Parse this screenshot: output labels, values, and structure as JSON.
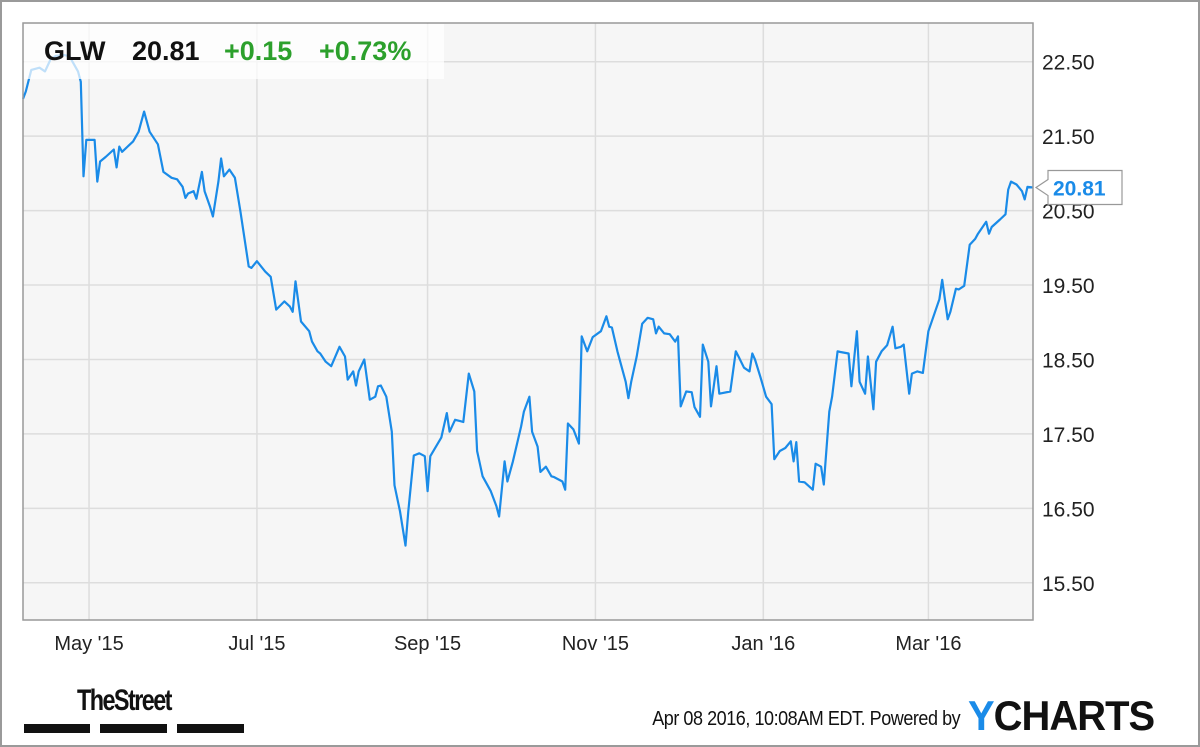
{
  "header": {
    "ticker": "GLW",
    "price": "20.81",
    "change": "+0.15",
    "change_pct": "+0.73%"
  },
  "colors": {
    "line": "#1a8be8",
    "positive": "#2ca02c",
    "grid": "#dddddd",
    "plot_bg": "#f6f6f6"
  },
  "last_value_label": "20.81",
  "footer": {
    "timestamp": "Apr 08 2016, 10:08AM EDT. Powered by",
    "brand_y": "Y",
    "brand_rest": "CHARTS",
    "publisher": "TheStreet"
  },
  "chart_data": {
    "type": "line",
    "title": "",
    "xlabel": "",
    "ylabel": "",
    "xlim": [
      "2015-04-07",
      "2016-04-08"
    ],
    "ylim": [
      15.0,
      23.02
    ],
    "grid": true,
    "y_axis_side": "right",
    "y_ticks": [
      "22.50",
      "21.50",
      "20.50",
      "19.50",
      "18.50",
      "17.50",
      "16.50",
      "15.50"
    ],
    "x_ticks": [
      {
        "date": "2015-05-01",
        "label": "May '15"
      },
      {
        "date": "2015-07-01",
        "label": "Jul '15"
      },
      {
        "date": "2015-09-01",
        "label": "Sep '15"
      },
      {
        "date": "2015-11-01",
        "label": "Nov '15"
      },
      {
        "date": "2016-01-01",
        "label": "Jan '16"
      },
      {
        "date": "2016-03-01",
        "label": "Mar '16"
      }
    ],
    "series": [
      {
        "x": [
          "2015-04-07",
          "2015-04-08",
          "2015-04-10",
          "2015-04-13",
          "2015-04-15",
          "2015-04-17",
          "2015-04-19",
          "2015-04-22",
          "2015-04-24",
          "2015-04-25",
          "2015-04-27",
          "2015-04-28",
          "2015-04-29",
          "2015-04-30",
          "2015-05-03",
          "2015-05-04",
          "2015-05-05",
          "2015-05-07",
          "2015-05-10",
          "2015-05-11",
          "2015-05-12",
          "2015-05-13",
          "2015-05-17",
          "2015-05-19",
          "2015-05-21",
          "2015-05-23",
          "2015-05-26",
          "2015-05-28",
          "2015-05-31",
          "2015-06-02",
          "2015-06-04",
          "2015-06-05",
          "2015-06-06",
          "2015-06-08",
          "2015-06-09",
          "2015-06-11",
          "2015-06-12",
          "2015-06-14",
          "2015-06-15",
          "2015-06-17",
          "2015-06-18",
          "2015-06-19",
          "2015-06-21",
          "2015-06-23",
          "2015-06-25",
          "2015-06-28",
          "2015-06-29",
          "2015-07-01",
          "2015-07-04",
          "2015-07-06",
          "2015-07-08",
          "2015-07-11",
          "2015-07-13",
          "2015-07-14",
          "2015-07-15",
          "2015-07-17",
          "2015-07-20",
          "2015-07-21",
          "2015-07-23",
          "2015-07-24",
          "2015-07-26",
          "2015-07-28",
          "2015-07-31",
          "2015-08-02",
          "2015-08-03",
          "2015-08-05",
          "2015-08-06",
          "2015-08-07",
          "2015-08-09",
          "2015-08-11",
          "2015-08-13",
          "2015-08-14",
          "2015-08-15",
          "2015-08-17",
          "2015-08-19",
          "2015-08-20",
          "2015-08-22",
          "2015-08-24",
          "2015-08-25",
          "2015-08-27",
          "2015-08-29",
          "2015-08-31",
          "2015-09-01",
          "2015-09-02",
          "2015-09-06",
          "2015-09-08",
          "2015-09-09",
          "2015-09-11",
          "2015-09-13",
          "2015-09-14",
          "2015-09-16",
          "2015-09-18",
          "2015-09-19",
          "2015-09-21",
          "2015-09-24",
          "2015-09-26",
          "2015-09-27",
          "2015-09-29",
          "2015-09-30",
          "2015-10-02",
          "2015-10-05",
          "2015-10-06",
          "2015-10-08",
          "2015-10-09",
          "2015-10-11",
          "2015-10-12",
          "2015-10-14",
          "2015-10-16",
          "2015-10-17",
          "2015-10-20",
          "2015-10-21",
          "2015-10-22",
          "2015-10-24",
          "2015-10-26",
          "2015-10-27",
          "2015-10-29",
          "2015-10-31",
          "2015-11-03",
          "2015-11-05",
          "2015-11-06",
          "2015-11-07",
          "2015-11-09",
          "2015-11-12",
          "2015-11-13",
          "2015-11-14",
          "2015-11-16",
          "2015-11-18",
          "2015-11-20",
          "2015-11-22",
          "2015-11-23",
          "2015-11-24",
          "2015-11-26",
          "2015-11-28",
          "2015-11-30",
          "2015-12-01",
          "2015-12-02",
          "2015-12-04",
          "2015-12-06",
          "2015-12-07",
          "2015-12-09",
          "2015-12-10",
          "2015-12-12",
          "2015-12-13",
          "2015-12-15",
          "2015-12-16",
          "2015-12-20",
          "2015-12-22",
          "2015-12-23",
          "2015-12-25",
          "2015-12-27",
          "2015-12-28",
          "2015-12-29",
          "2015-12-31",
          "2016-01-02",
          "2016-01-04",
          "2016-01-05",
          "2016-01-07",
          "2016-01-09",
          "2016-01-11",
          "2016-01-12",
          "2016-01-13",
          "2016-01-14",
          "2016-01-16",
          "2016-01-19",
          "2016-01-20",
          "2016-01-22",
          "2016-01-23",
          "2016-01-25",
          "2016-01-26",
          "2016-01-28",
          "2016-01-29",
          "2016-02-01",
          "2016-02-02",
          "2016-02-04",
          "2016-02-05",
          "2016-02-07",
          "2016-02-08",
          "2016-02-10",
          "2016-02-11",
          "2016-02-13",
          "2016-02-15",
          "2016-02-17",
          "2016-02-18",
          "2016-02-20",
          "2016-02-21",
          "2016-02-23",
          "2016-02-24",
          "2016-02-26",
          "2016-02-28",
          "2016-02-29",
          "2016-03-01",
          "2016-03-05",
          "2016-03-06",
          "2016-03-08",
          "2016-03-09",
          "2016-03-11",
          "2016-03-12",
          "2016-03-14",
          "2016-03-16",
          "2016-03-18",
          "2016-03-19",
          "2016-03-22",
          "2016-03-23",
          "2016-03-24",
          "2016-03-27",
          "2016-03-29",
          "2016-03-30",
          "2016-03-31",
          "2016-04-02",
          "2016-04-04",
          "2016-04-05",
          "2016-04-06",
          "2016-04-08"
        ],
        "y": [
          22.0,
          22.1,
          22.39,
          22.42,
          22.37,
          22.53,
          22.58,
          22.59,
          22.57,
          22.5,
          22.37,
          22.23,
          20.96,
          21.45,
          21.45,
          20.89,
          21.16,
          21.22,
          21.32,
          21.08,
          21.36,
          21.29,
          21.43,
          21.56,
          21.83,
          21.56,
          21.39,
          21.02,
          20.94,
          20.92,
          20.82,
          20.67,
          20.73,
          20.76,
          20.66,
          21.02,
          20.76,
          20.55,
          20.42,
          20.89,
          21.2,
          20.96,
          21.05,
          20.94,
          20.49,
          19.75,
          19.73,
          19.82,
          19.68,
          19.61,
          19.17,
          19.28,
          19.21,
          19.14,
          19.55,
          19.01,
          18.88,
          18.74,
          18.61,
          18.58,
          18.47,
          18.41,
          18.67,
          18.54,
          18.23,
          18.34,
          18.15,
          18.34,
          18.5,
          17.96,
          18.0,
          18.14,
          18.15,
          18.0,
          17.53,
          16.81,
          16.46,
          16.0,
          16.46,
          17.21,
          17.24,
          17.2,
          16.73,
          17.2,
          17.45,
          17.78,
          17.53,
          17.69,
          17.67,
          17.66,
          18.31,
          18.07,
          17.27,
          16.93,
          16.73,
          16.53,
          16.39,
          17.13,
          16.86,
          17.13,
          17.6,
          17.8,
          18.0,
          17.53,
          17.33,
          16.99,
          17.06,
          16.93,
          16.92,
          16.86,
          16.75,
          17.64,
          17.56,
          17.37,
          18.81,
          18.61,
          18.8,
          18.88,
          19.08,
          18.94,
          18.93,
          18.61,
          18.2,
          17.98,
          18.2,
          18.54,
          18.98,
          19.06,
          19.04,
          18.85,
          18.94,
          18.85,
          18.84,
          18.74,
          18.81,
          17.87,
          18.07,
          18.06,
          17.86,
          17.73,
          18.7,
          18.47,
          17.87,
          18.41,
          18.04,
          18.07,
          18.61,
          18.54,
          18.39,
          18.34,
          18.58,
          18.5,
          18.26,
          18.0,
          17.9,
          17.16,
          17.27,
          17.31,
          17.4,
          17.13,
          17.39,
          16.86,
          16.85,
          16.75,
          17.1,
          17.06,
          16.82,
          17.8,
          18.0,
          18.61,
          18.6,
          18.58,
          18.14,
          18.88,
          18.2,
          18.04,
          18.54,
          17.83,
          18.47,
          18.61,
          18.69,
          18.94,
          18.65,
          18.67,
          18.7,
          18.04,
          18.31,
          18.34,
          18.32,
          18.61,
          18.88,
          19.31,
          19.57,
          19.04,
          19.14,
          19.45,
          19.44,
          19.49,
          20.04,
          20.12,
          20.19,
          20.35,
          20.19,
          20.28,
          20.38,
          20.45,
          20.78,
          20.89,
          20.85,
          20.76,
          20.65,
          20.82,
          20.81
        ]
      }
    ]
  }
}
